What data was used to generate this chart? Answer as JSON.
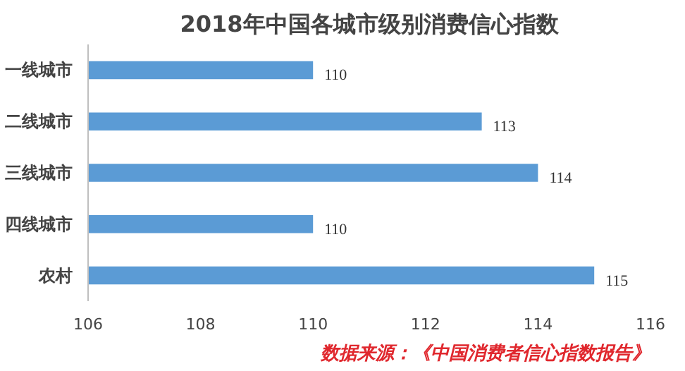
{
  "chart_data": {
    "type": "bar",
    "orientation": "horizontal",
    "title": "2018年中国各城市级别消费信心指数",
    "categories": [
      "一线城市",
      "二线城市",
      "三线城市",
      "四线城市",
      "农村"
    ],
    "values": [
      110,
      113,
      114,
      110,
      115
    ],
    "color": "#5b9bd5",
    "xlim": [
      106,
      116
    ],
    "xticks": [
      106,
      108,
      110,
      112,
      114,
      116
    ],
    "grid": false,
    "data_labels": true,
    "annotations": [
      "数据来源：《中国消费者信心指数报告》"
    ]
  }
}
